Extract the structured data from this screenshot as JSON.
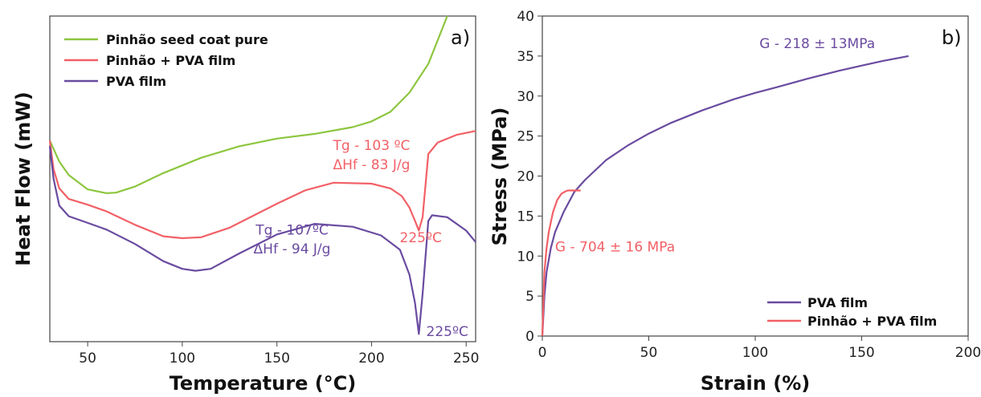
{
  "chart_data": [
    {
      "panel": "a)",
      "type": "line",
      "xlabel": "Temperature (°C)",
      "ylabel": "Heat Flow (mW)",
      "xlim": [
        30,
        255
      ],
      "xticks": [
        "50",
        "100",
        "150",
        "200",
        "250"
      ],
      "yticks_shown": false,
      "grid": false,
      "legend_position": "top-left",
      "series": [
        {
          "name": "Pinhão seed coat pure",
          "color": "#8dc63f",
          "x": [
            30,
            35,
            40,
            50,
            60,
            65,
            75,
            90,
            110,
            130,
            150,
            170,
            190,
            200,
            210,
            220,
            230,
            240
          ],
          "y": [
            0.85,
            0.74,
            0.67,
            0.595,
            0.575,
            0.578,
            0.61,
            0.68,
            0.76,
            0.82,
            0.86,
            0.885,
            0.92,
            0.95,
            1.0,
            1.1,
            1.25,
            1.5
          ]
        },
        {
          "name": "Pinhão + PVA film",
          "color": "#f26066",
          "x": [
            30,
            32,
            35,
            40,
            50,
            60,
            75,
            90,
            100,
            110,
            125,
            150,
            165,
            180,
            200,
            210,
            216,
            220,
            223,
            225,
            227,
            230,
            235,
            245,
            255
          ],
          "y": [
            0.85,
            0.7,
            0.6,
            0.545,
            0.515,
            0.48,
            0.41,
            0.35,
            0.34,
            0.345,
            0.395,
            0.52,
            0.59,
            0.63,
            0.625,
            0.6,
            0.56,
            0.5,
            0.43,
            0.38,
            0.45,
            0.78,
            0.84,
            0.88,
            0.9
          ]
        },
        {
          "name": "PVA film",
          "color": "#6a4ba0",
          "x": [
            30,
            32,
            35,
            40,
            50,
            60,
            75,
            90,
            100,
            107,
            115,
            130,
            150,
            170,
            190,
            205,
            215,
            220,
            223,
            225,
            227,
            230,
            232,
            240,
            250,
            255
          ],
          "y": [
            0.82,
            0.65,
            0.51,
            0.455,
            0.42,
            0.385,
            0.31,
            0.22,
            0.18,
            0.17,
            0.18,
            0.26,
            0.36,
            0.415,
            0.4,
            0.355,
            0.28,
            0.15,
            0.0,
            -0.16,
            0.05,
            0.43,
            0.46,
            0.45,
            0.38,
            0.32
          ]
        }
      ],
      "annotations": [
        {
          "text": "Tg - 103 ºC",
          "color": "#f26066",
          "x": 200,
          "y": 0.8
        },
        {
          "text": "ΔHf - 83 J/g",
          "color": "#f26066",
          "x": 200,
          "y": 0.7
        },
        {
          "text": "225ºC",
          "color": "#f26066",
          "x": 226,
          "y": 0.32
        },
        {
          "text": "Tg - 107ºC",
          "color": "#6a4ba0",
          "x": 158,
          "y": 0.36
        },
        {
          "text": "ΔHf - 94 J/g",
          "color": "#6a4ba0",
          "x": 158,
          "y": 0.26
        },
        {
          "text": "225ºC",
          "color": "#6a4ba0",
          "x": 240,
          "y": -0.17
        }
      ]
    },
    {
      "panel": "b)",
      "type": "line",
      "xlabel": "Strain (%)",
      "ylabel": "Stress (MPa)",
      "xlim": [
        0,
        200
      ],
      "ylim": [
        0,
        40
      ],
      "xticks": [
        "0",
        "50",
        "100",
        "150",
        "200"
      ],
      "yticks": [
        "0",
        "5",
        "10",
        "15",
        "20",
        "25",
        "30",
        "35",
        "40"
      ],
      "grid": false,
      "legend_position": "bottom-right",
      "series": [
        {
          "name": "PVA film",
          "color": "#6a4ba0",
          "x": [
            0,
            1,
            2,
            4,
            6,
            10,
            15,
            20,
            30,
            40,
            50,
            60,
            75,
            90,
            100,
            110,
            125,
            140,
            150,
            160,
            172
          ],
          "y": [
            0,
            5,
            8,
            11,
            13,
            15.5,
            18,
            19.5,
            22,
            23.8,
            25.3,
            26.6,
            28.2,
            29.6,
            30.4,
            31.1,
            32.2,
            33.2,
            33.8,
            34.4,
            35
          ]
        },
        {
          "name": "Pinhão + PVA film",
          "color": "#f26066",
          "x": [
            0,
            0.5,
            1,
            2,
            3,
            5,
            7,
            9,
            11,
            12,
            15,
            18
          ],
          "y": [
            0,
            4,
            8,
            11,
            13,
            15.5,
            17,
            17.8,
            18.1,
            18.2,
            18.2,
            18.2
          ]
        }
      ],
      "annotations": [
        {
          "text": "G - 218 ± 13MPa",
          "color": "#6a4ba0",
          "x": 102,
          "y": 36
        },
        {
          "text": "G - 704 ± 16 MPa",
          "color": "#f26066",
          "x": 6,
          "y": 10.6
        }
      ]
    }
  ]
}
